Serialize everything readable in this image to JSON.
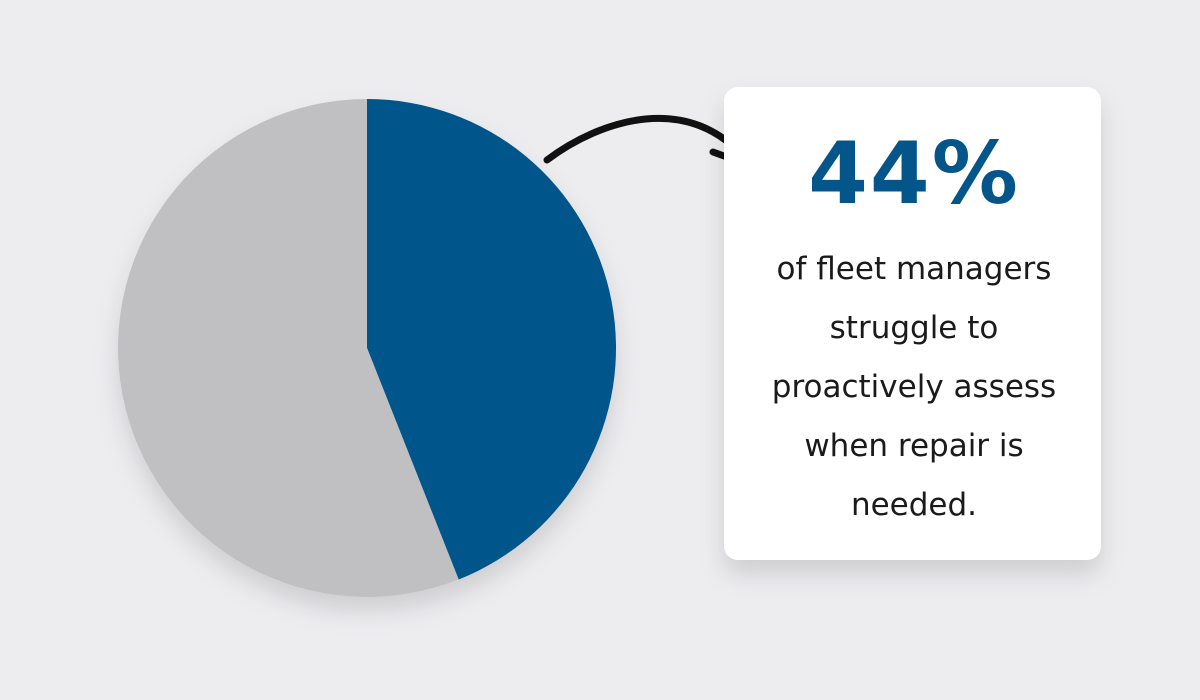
{
  "chart_data": {
    "type": "pie",
    "values": [
      44,
      56
    ],
    "value_labels": [
      "44%",
      null
    ],
    "colors": [
      "#03558a",
      "#c0c0c2"
    ],
    "caption_lines": [
      "of fleet managers",
      "struggle to",
      "proactively assess",
      "when repair is",
      "needed."
    ]
  }
}
